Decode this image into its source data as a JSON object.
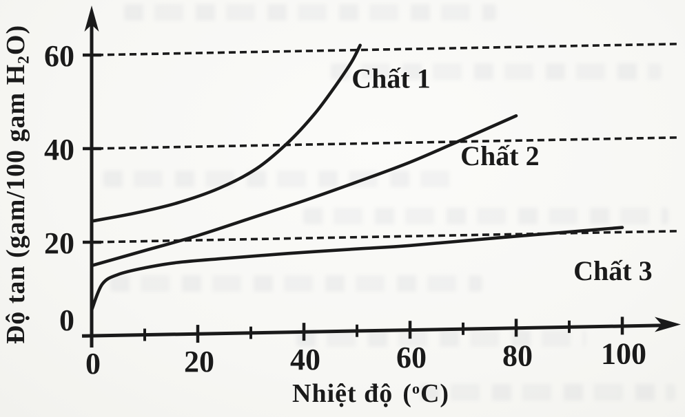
{
  "figure": {
    "kind": "scanned textbook solubility graph",
    "ink_color": "#1a1a1a",
    "paper_color": "#f8f8f5"
  },
  "chart_data": {
    "type": "line",
    "title": "",
    "xlabel": "Nhiệt độ (°C)",
    "xlabel_parts": {
      "name": "Nhiệt độ",
      "open": "(",
      "sup": "o",
      "close": "C)"
    },
    "ylabel": "Độ tan (gam/100 gam H₂O)",
    "ylabel_parts": {
      "pre": "Độ tan (gam/100 gam H",
      "sub": "2",
      "post": "O)"
    },
    "xlim": [
      0,
      110
    ],
    "ylim": [
      0,
      68
    ],
    "x_ticks_major": [
      0,
      20,
      40,
      60,
      80,
      100
    ],
    "x_ticks_minor": [
      10,
      30,
      50,
      70,
      90
    ],
    "y_ticks": [
      0,
      20,
      40,
      60
    ],
    "y_gridlines_dashed": [
      20,
      40,
      60
    ],
    "grid": "horizontal dashed reference lines at y = 20, 40, 60 only",
    "legend_position": "inline labels next to each curve",
    "series": [
      {
        "name": "Chất 1",
        "x": [
          0,
          8,
          16,
          24,
          31,
          37,
          42,
          46,
          49,
          50.6
        ],
        "y": [
          24.5,
          26,
          28,
          31,
          35,
          40.5,
          46.5,
          52.5,
          57.5,
          61
        ],
        "label_at": [
          49,
          54
        ]
      },
      {
        "name": "Chất 2",
        "x": [
          0,
          10,
          20,
          30,
          40,
          50,
          60,
          70,
          80
        ],
        "y": [
          15,
          18,
          21,
          24.5,
          28,
          31.8,
          35.8,
          40.5,
          45.3
        ],
        "label_at": [
          69.5,
          37
        ]
      },
      {
        "name": "Chất 3",
        "x": [
          0,
          2,
          5,
          10,
          16,
          25,
          37,
          50,
          60,
          78,
          100
        ],
        "y": [
          5.5,
          11,
          13,
          14.3,
          15.3,
          16,
          16.8,
          17.5,
          18,
          19.4,
          21
        ],
        "label_at": [
          90.8,
          12
        ]
      }
    ]
  }
}
